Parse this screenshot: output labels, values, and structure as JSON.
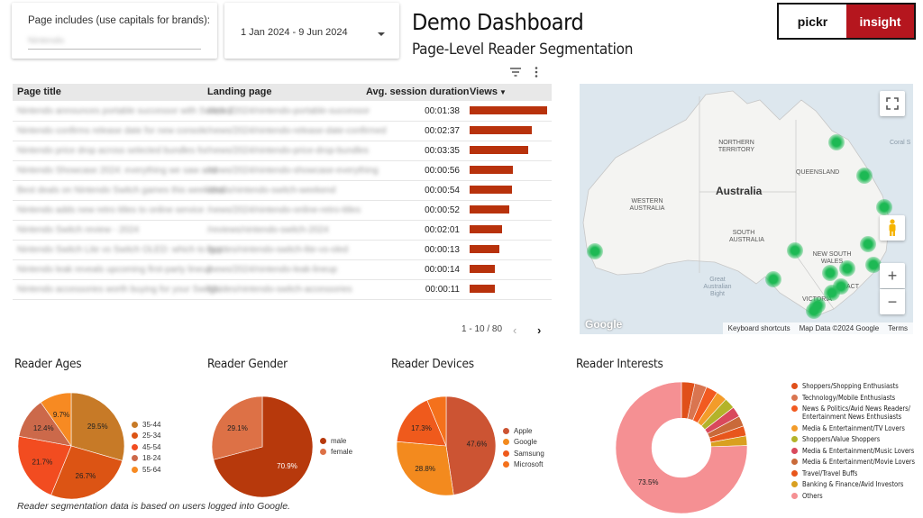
{
  "filter": {
    "label": "Page includes (use capitals for brands):",
    "value": "Nintendo"
  },
  "date_range": {
    "value": "1 Jan 2024 - 9 Jun 2024"
  },
  "header": {
    "title": "Demo Dashboard",
    "subtitle": "Page-Level Reader Segmentation"
  },
  "logo": {
    "left": "pickr",
    "right": "insight",
    "accent": "#b5161e"
  },
  "table": {
    "columns": [
      "Page title",
      "Landing page",
      "Avg. session duration",
      "Views"
    ],
    "sort_indicator": "▼",
    "bar_color": "#b8320c",
    "rows": [
      {
        "title": "Nintendo announces portable successor with Switch 2",
        "landing": "/news/2024/nintendo-portable-successor",
        "duration": "00:01:38",
        "views": 100
      },
      {
        "title": "Nintendo confirms release date for new console",
        "landing": "/news/2024/nintendo-release-date-confirmed",
        "duration": "00:02:37",
        "views": 80
      },
      {
        "title": "Nintendo price drop across selected bundles for",
        "landing": "/news/2024/nintendo-price-drop-bundles",
        "duration": "00:03:35",
        "views": 75
      },
      {
        "title": "Nintendo Showcase 2024: everything we saw and",
        "landing": "/news/2024/nintendo-showcase-everything",
        "duration": "00:00:56",
        "views": 56
      },
      {
        "title": "Best deals on Nintendo Switch games this weekend",
        "landing": "/deals/nintendo-switch-weekend",
        "duration": "00:00:54",
        "views": 55
      },
      {
        "title": "Nintendo adds new retro titles to online service",
        "landing": "/news/2024/nintendo-online-retro-titles",
        "duration": "00:00:52",
        "views": 51
      },
      {
        "title": "Nintendo Switch review - 2024",
        "landing": "/reviews/nintendo-switch-2024",
        "duration": "00:02:01",
        "views": 42
      },
      {
        "title": "Nintendo Switch Lite vs Switch OLED: which to buy",
        "landing": "/guides/nintendo-switch-lite-vs-oled",
        "duration": "00:00:13",
        "views": 38
      },
      {
        "title": "Nintendo leak reveals upcoming first-party lineup",
        "landing": "/news/2024/nintendo-leak-lineup",
        "duration": "00:00:14",
        "views": 33
      },
      {
        "title": "Nintendo accessories worth buying for your Switch",
        "landing": "/guides/nintendo-switch-accessories",
        "duration": "00:00:11",
        "views": 33
      }
    ],
    "pagination": "1 - 10 / 80"
  },
  "map": {
    "country_label": "Australia",
    "region_labels": [
      "NORTHERN TERRITORY",
      "QUEENSLAND",
      "WESTERN AUSTRALIA",
      "SOUTH AUSTRALIA",
      "NEW SOUTH WALES",
      "VICTORIA",
      "ACT"
    ],
    "sea_labels": [
      "Great Australian Bight",
      "Coral S"
    ],
    "footer": [
      "Keyboard shortcuts",
      "Map Data ©2024 Google",
      "Terms"
    ],
    "brand": "Google",
    "dot_color": "#1db954"
  },
  "sections": {
    "ages": "Reader Ages",
    "gender": "Reader Gender",
    "devices": "Reader Devices",
    "interests": "Reader Interests"
  },
  "ages": {
    "slices": [
      {
        "label": "35-44",
        "value": 29.5,
        "color": "#c77a27"
      },
      {
        "label": "25-34",
        "value": 26.7,
        "color": "#dc5414"
      },
      {
        "label": "45-54",
        "value": 21.7,
        "color": "#f24c20"
      },
      {
        "label": "18-24",
        "value": 12.4,
        "color": "#cc694a"
      },
      {
        "label": "55-64",
        "value": 9.7,
        "color": "#f78a22"
      }
    ]
  },
  "gender": {
    "slices": [
      {
        "label": "male",
        "value": 70.9,
        "color": "#b7390c"
      },
      {
        "label": "female",
        "value": 29.1,
        "color": "#dd7146"
      }
    ]
  },
  "devices": {
    "slices": [
      {
        "label": "Apple",
        "value": 47.6,
        "color": "#cc5433"
      },
      {
        "label": "Google",
        "value": 28.8,
        "color": "#f38a1e"
      },
      {
        "label": "Samsung",
        "value": 17.3,
        "color": "#ef5a1c"
      },
      {
        "label": "Microsoft",
        "value": 6.3,
        "color": "#f4711c"
      }
    ]
  },
  "interests": {
    "slices": [
      {
        "label": "Shoppers/Shopping Enthusiasts",
        "value": 3.2,
        "color": "#e0501a"
      },
      {
        "label": "Technology/Mobile Enthusiasts",
        "value": 2.9,
        "color": "#d97550"
      },
      {
        "label": "News & Politics/Avid News Readers/ Entertainment News Enthusiasts",
        "value": 2.8,
        "color": "#f25a20"
      },
      {
        "label": "Media & Entertainment/TV Lovers",
        "value": 2.6,
        "color": "#f39c2a"
      },
      {
        "label": "Shoppers/Value Shoppers",
        "value": 2.6,
        "color": "#b3b32a"
      },
      {
        "label": "Media & Entertainment/Music Lovers",
        "value": 2.5,
        "color": "#d9495c"
      },
      {
        "label": "Media & Entertainment/Movie Lovers",
        "value": 2.5,
        "color": "#c96a3a"
      },
      {
        "label": "Travel/Travel Buffs",
        "value": 2.4,
        "color": "#e8561c"
      },
      {
        "label": "Banking & Finance/Avid Investors",
        "value": 2.3,
        "color": "#d9a020"
      },
      {
        "label": "Others",
        "value": 73.5,
        "color": "#f59093"
      }
    ]
  },
  "footer_note": "Reader segmentation data is based on users logged into Google."
}
